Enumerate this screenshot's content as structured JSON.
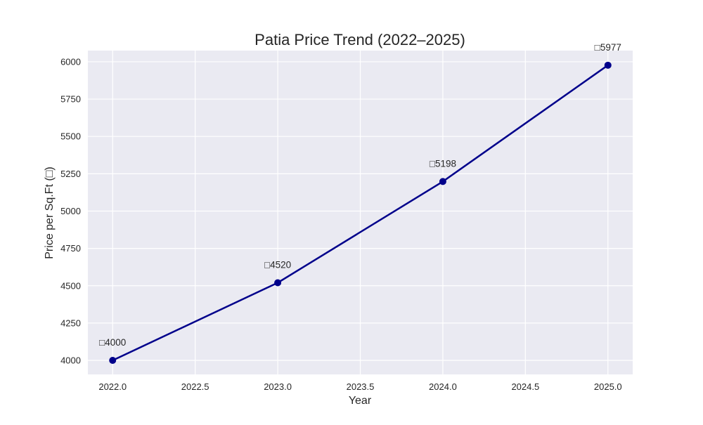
{
  "chart_data": {
    "type": "line",
    "title": "Patia Price Trend (2022–2025)",
    "xlabel": "Year",
    "ylabel": "Price per Sq.Ft (□)",
    "x": [
      2022,
      2023,
      2024,
      2025
    ],
    "series": [
      {
        "values": [
          4000,
          4520,
          5198,
          5977
        ],
        "color": "#00008b"
      }
    ],
    "data_labels": [
      "□4000",
      "□4520",
      "□5198",
      "□5977"
    ],
    "xlim": [
      2021.85,
      2025.15
    ],
    "ylim": [
      3906,
      6075
    ],
    "xticks": [
      2022.0,
      2022.5,
      2023.0,
      2023.5,
      2024.0,
      2024.5,
      2025.0
    ],
    "xtick_labels": [
      "2022.0",
      "2022.5",
      "2023.0",
      "2023.5",
      "2024.0",
      "2024.5",
      "2025.0"
    ],
    "yticks": [
      4000,
      4250,
      4500,
      4750,
      5000,
      5250,
      5500,
      5750,
      6000
    ],
    "ytick_labels": [
      "4000",
      "4250",
      "4500",
      "4750",
      "5000",
      "5250",
      "5500",
      "5750",
      "6000"
    ],
    "grid": true,
    "background": "#eaeaf2"
  }
}
